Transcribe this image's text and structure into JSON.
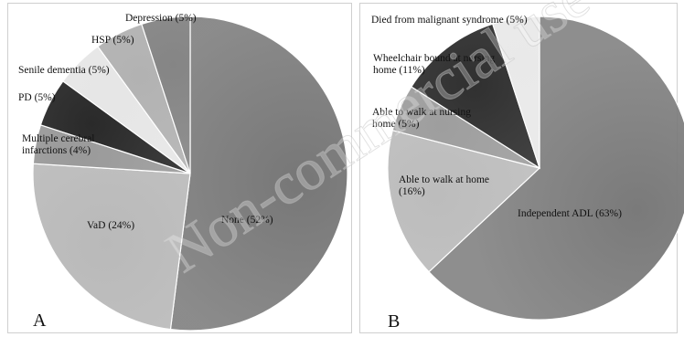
{
  "chart_data": [
    {
      "type": "pie",
      "panel_label": "A",
      "slices": [
        {
          "label": "None (52%)",
          "value": 52,
          "color": "#777777"
        },
        {
          "label": "VaD (24%)",
          "value": 24,
          "color": "#b9b9b9"
        },
        {
          "label": "Multiple cerebral\ninfarctions (4%)",
          "value": 4,
          "color": "#9a9a9a"
        },
        {
          "label": "PD (5%)",
          "value": 5,
          "color": "#2a2a2a"
        },
        {
          "label": "Senile dementia (5%)",
          "value": 5,
          "color": "#e6e6e6"
        },
        {
          "label": "HSP (5%)",
          "value": 5,
          "color": "#b2b2b2"
        },
        {
          "label": "Depression (5%)",
          "value": 5,
          "color": "#858585"
        }
      ]
    },
    {
      "type": "pie",
      "panel_label": "B",
      "slices": [
        {
          "label": "Independent ADL (63%)",
          "value": 63,
          "color": "#7a7a7a"
        },
        {
          "label": "Able to walk at home\n(16%)",
          "value": 16,
          "color": "#bcbcbc"
        },
        {
          "label": "Able to walk at nursing\nhome (5%)",
          "value": 5,
          "color": "#9e9e9e"
        },
        {
          "label": "Wheelchair bound at nursing\nhome (11%)",
          "value": 11,
          "color": "#303030"
        },
        {
          "label": "Died from malignant syndrome (5%)",
          "value": 5,
          "color": "#e9e9e9"
        }
      ]
    }
  ],
  "watermark": "Non-commercial use only"
}
